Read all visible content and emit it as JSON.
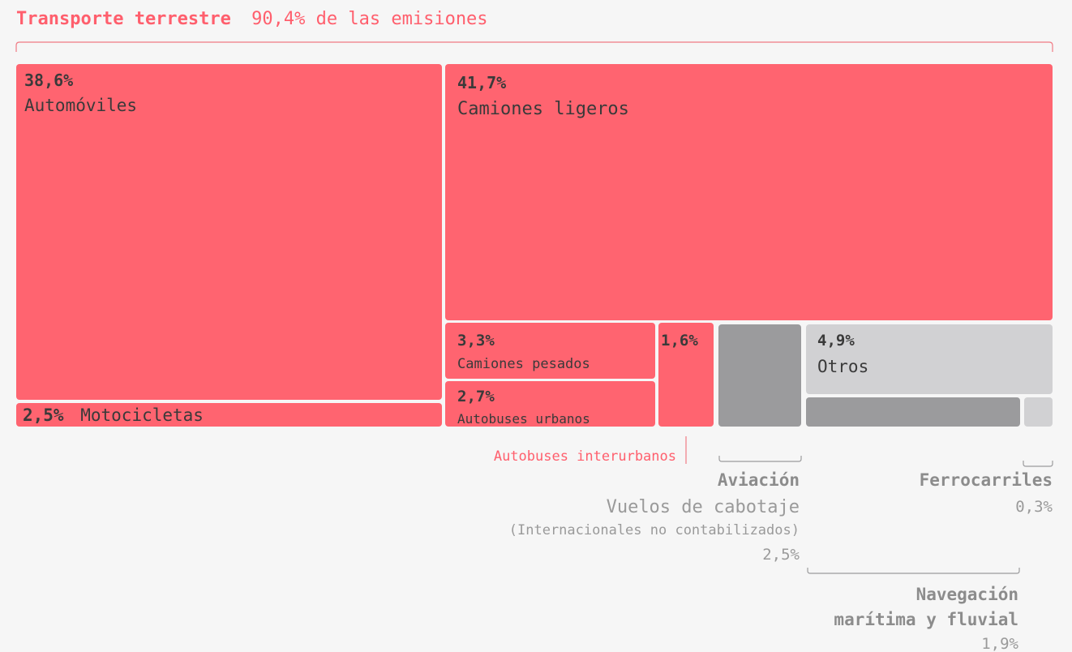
{
  "colors": {
    "accent": "#ff6470",
    "bracket": "#f07a84",
    "dark_gray": "#9b9b9d",
    "light_gray": "#d1d1d3",
    "label_dark": "#3a3a3a",
    "label_gray": "#8c8c8c"
  },
  "chart_data": {
    "type": "treemap",
    "title_bold": "Transporte terrestre",
    "title_rest": "90,4% de las emisiones",
    "groups": [
      {
        "name": "Transporte terrestre",
        "value": 90.4,
        "items": [
          {
            "name": "Automóviles",
            "value": 38.6,
            "label": "38,6%"
          },
          {
            "name": "Motocicletas",
            "value": 2.5,
            "label": "2,5%"
          },
          {
            "name": "Camiones ligeros",
            "value": 41.7,
            "label": "41,7%"
          },
          {
            "name": "Camiones pesados",
            "value": 3.3,
            "label": "3,3%"
          },
          {
            "name": "Autobuses urbanos",
            "value": 2.7,
            "label": "2,7%"
          },
          {
            "name": "Autobuses interurbanos",
            "value": 1.6,
            "label": "1,6%"
          }
        ]
      },
      {
        "name": "Aviación",
        "value": 2.5,
        "label": "2,5%",
        "subtitle": "Vuelos de cabotaje",
        "note": "(Internacionales no contabilizados)"
      },
      {
        "name": "Otros",
        "value": 4.9,
        "label": "4,9%"
      },
      {
        "name_line1": "Navegación",
        "name_line2": "marítima y fluvial",
        "value": 1.9,
        "label": "1,9%"
      },
      {
        "name": "Ferrocarriles",
        "value": 0.3,
        "label": "0,3%"
      }
    ]
  }
}
